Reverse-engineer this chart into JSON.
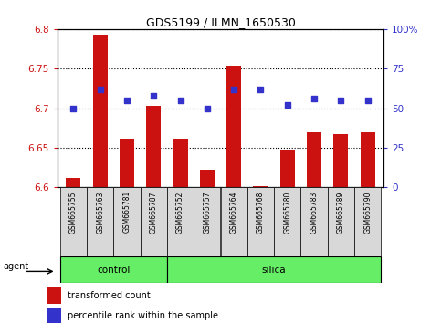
{
  "title": "GDS5199 / ILMN_1650530",
  "samples": [
    "GSM665755",
    "GSM665763",
    "GSM665781",
    "GSM665787",
    "GSM665752",
    "GSM665757",
    "GSM665764",
    "GSM665768",
    "GSM665780",
    "GSM665783",
    "GSM665789",
    "GSM665790"
  ],
  "groups": [
    "control",
    "control",
    "control",
    "control",
    "silica",
    "silica",
    "silica",
    "silica",
    "silica",
    "silica",
    "silica",
    "silica"
  ],
  "transformed_count": [
    6.612,
    6.793,
    6.661,
    6.703,
    6.661,
    6.622,
    6.754,
    6.601,
    6.648,
    6.67,
    6.667,
    6.669
  ],
  "percentile_rank": [
    50,
    62,
    55,
    58,
    55,
    50,
    62,
    62,
    52,
    56,
    55,
    55
  ],
  "ymin": 6.6,
  "ymax": 6.8,
  "yticks": [
    6.6,
    6.65,
    6.7,
    6.75,
    6.8
  ],
  "right_yticks": [
    0,
    25,
    50,
    75,
    100
  ],
  "bar_color": "#cc1111",
  "dot_color": "#3333cc",
  "bar_bottom": 6.6,
  "control_color": "#66ee66",
  "silica_color": "#66ee66",
  "agent_label": "agent",
  "legend_bar_label": "transformed count",
  "legend_dot_label": "percentile rank within the sample",
  "right_axis_color": "#3333cc",
  "tick_label_color_left": "#cc1111",
  "tick_label_color_right": "#3333cc",
  "n_control": 4,
  "n_silica": 8
}
